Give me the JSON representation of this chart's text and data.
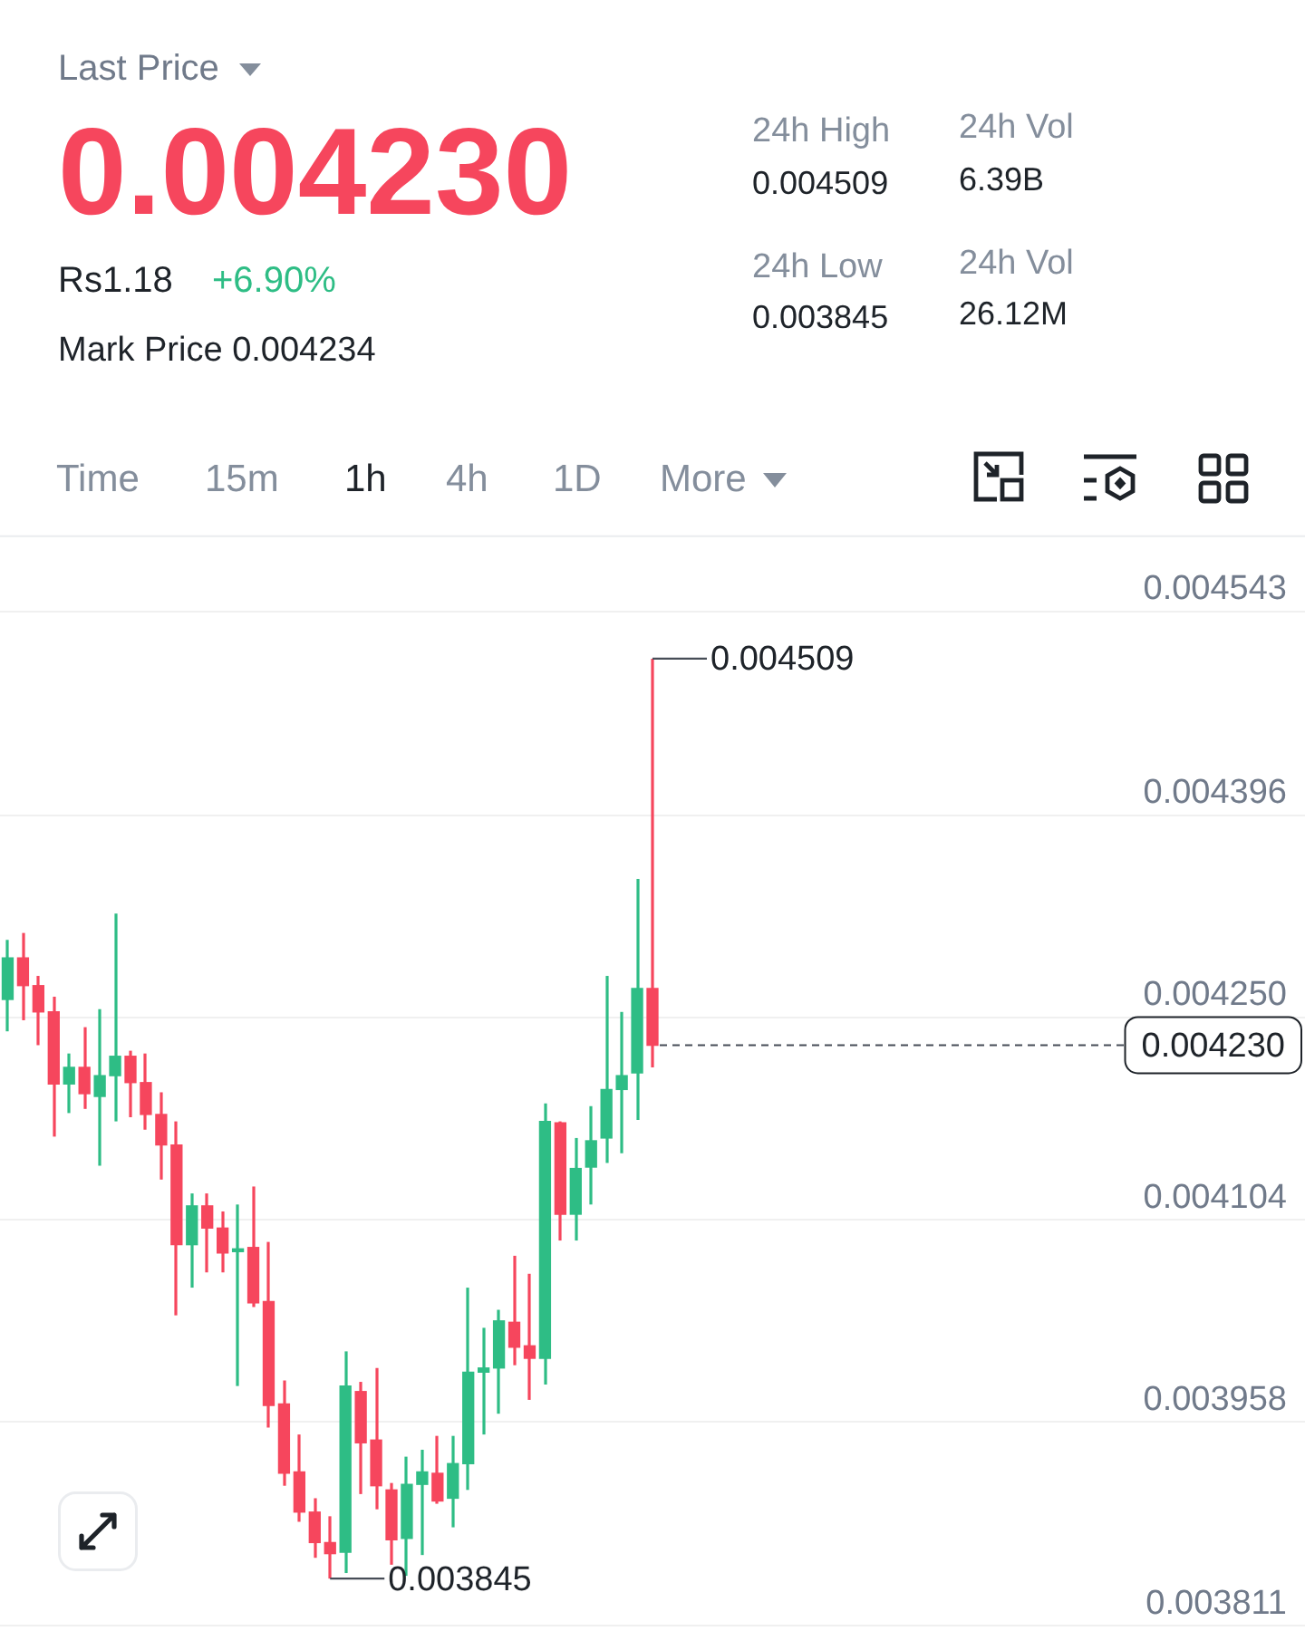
{
  "chart_data": {
    "type": "candlestick",
    "title": "Last Price",
    "annotations": [
      "0.004230",
      "Rs1.18",
      "+6.90%",
      "Mark Price 0.004234",
      "24h High",
      "0.004509",
      "24h Vol",
      "6.39B",
      "24h Low",
      "0.003845",
      "24h Vol",
      "26.12M",
      "Time",
      "15m",
      "1h",
      "4h",
      "1D",
      "More",
      "0.004509",
      "0.003845"
    ],
    "categories": [
      null,
      null,
      null,
      null,
      null,
      null,
      null,
      null,
      null,
      null,
      null,
      null,
      null,
      null,
      null,
      null,
      null,
      null,
      null,
      null,
      null,
      null,
      null,
      null,
      null,
      null,
      null,
      null,
      null,
      null,
      null,
      null,
      null,
      null,
      null,
      null,
      null,
      null,
      null,
      null,
      null,
      null,
      null,
      null,
      null,
      null,
      null,
      null,
      null,
      null,
      null,
      null,
      null,
      null,
      null,
      null,
      null,
      null,
      null,
      null,
      null,
      null,
      null,
      null,
      null,
      null,
      null,
      null,
      null,
      null,
      null,
      null,
      null,
      null,
      null,
      null,
      null,
      null,
      null,
      null,
      null,
      null,
      null,
      null,
      null
    ],
    "ohlc": [
      [
        0.004263,
        0.004306,
        0.00424,
        0.004293
      ],
      [
        0.004293,
        0.004311,
        0.004248,
        0.004273
      ],
      [
        0.004273,
        0.00428,
        0.00423,
        0.004254
      ],
      [
        0.004254,
        0.004265,
        0.004164,
        0.004202
      ],
      [
        0.004202,
        0.004224,
        0.004181,
        0.004214
      ],
      [
        0.004214,
        0.004243,
        0.004184,
        0.004195
      ],
      [
        0.004193,
        0.004256,
        0.004143,
        0.004208
      ],
      [
        0.004208,
        0.004325,
        0.004175,
        0.004222
      ],
      [
        0.004222,
        0.004226,
        0.004178,
        0.004203
      ],
      [
        0.004203,
        0.004224,
        0.004169,
        0.00418
      ],
      [
        0.00418,
        0.004196,
        0.004133,
        0.004158
      ],
      [
        0.004158,
        0.004175,
        0.004035,
        0.004086
      ],
      [
        0.004086,
        0.004123,
        0.004055,
        0.004114
      ],
      [
        0.004114,
        0.004123,
        0.004066,
        0.004098
      ],
      [
        0.004098,
        0.00411,
        0.004066,
        0.00408
      ],
      [
        0.004081,
        0.004115,
        0.003984,
        0.004083
      ],
      [
        0.004084,
        0.004128,
        0.004041,
        0.004044
      ],
      [
        0.004045,
        0.004088,
        0.003954,
        0.00397
      ],
      [
        0.003971,
        0.003988,
        0.003912,
        0.003921
      ],
      [
        0.003922,
        0.003949,
        0.003886,
        0.003893
      ],
      [
        0.003893,
        0.003903,
        0.00386,
        0.003871
      ],
      [
        0.003871,
        0.00389,
        0.003845,
        0.003863
      ],
      [
        0.003864,
        0.004009,
        0.003849,
        0.003984
      ],
      [
        0.00398,
        0.003987,
        0.003906,
        0.003943
      ],
      [
        0.003945,
        0.003997,
        0.003895,
        0.003912
      ],
      [
        0.003909,
        0.003914,
        0.003855,
        0.003873
      ],
      [
        0.003874,
        0.003933,
        0.003847,
        0.003913
      ],
      [
        0.003913,
        0.003938,
        0.003862,
        0.003922
      ],
      [
        0.003921,
        0.003948,
        0.003899,
        0.003901
      ],
      [
        0.003903,
        0.003948,
        0.003882,
        0.003928
      ],
      [
        0.003928,
        0.004055,
        0.003909,
        0.003994
      ],
      [
        0.003994,
        0.004026,
        0.003949,
        0.003997
      ],
      [
        0.003997,
        0.004039,
        0.003964,
        0.004031
      ],
      [
        0.00403,
        0.004078,
        0.003999,
        0.004012
      ],
      [
        0.004013,
        0.004065,
        0.003974,
        0.004004
      ],
      [
        0.004004,
        0.004188,
        0.003985,
        0.004175
      ],
      [
        0.004174,
        0.004175,
        0.004089,
        0.004108
      ],
      [
        0.004108,
        0.004163,
        0.004089,
        0.004141
      ],
      [
        0.004142,
        0.004186,
        0.004115,
        0.004161
      ],
      [
        0.004163,
        0.00428,
        0.004145,
        0.004198
      ],
      [
        0.004198,
        0.004254,
        0.004152,
        0.004208
      ],
      [
        0.00421,
        0.00435,
        0.004176,
        0.004271
      ],
      [
        0.004271,
        0.004509,
        0.004214,
        0.00423
      ],
      null,
      null,
      null,
      null,
      null,
      null,
      null,
      null,
      null,
      null,
      null,
      null,
      null,
      null,
      null,
      null,
      null,
      null,
      null,
      null,
      null,
      null,
      null,
      null,
      null,
      null,
      null,
      null,
      null,
      null,
      null,
      null,
      null,
      null,
      null,
      null,
      null,
      null,
      null,
      null,
      null,
      null
    ],
    "colors": [
      "#2ebd85",
      "#f6465d",
      "#f6465d",
      "#f6465d",
      "#2ebd85",
      "#f6465d",
      "#2ebd85",
      "#2ebd85",
      "#f6465d",
      "#f6465d",
      "#f6465d",
      "#f6465d",
      "#2ebd85",
      "#f6465d",
      "#f6465d",
      "#2ebd85",
      "#f6465d",
      "#f6465d",
      "#f6465d",
      "#f6465d",
      "#f6465d",
      "#f6465d",
      "#2ebd85",
      "#f6465d",
      "#f6465d",
      "#f6465d",
      "#2ebd85",
      "#2ebd85",
      "#f6465d",
      "#2ebd85",
      "#2ebd85",
      "#2ebd85",
      "#2ebd85",
      "#f6465d",
      "#f6465d",
      "#2ebd85",
      "#f6465d",
      "#2ebd85",
      "#2ebd85",
      "#2ebd85",
      "#2ebd85",
      "#2ebd85",
      "#f6465d",
      null,
      null,
      null,
      null,
      null,
      null,
      null,
      null,
      null,
      null,
      null,
      null,
      null,
      null,
      null,
      null,
      null,
      null,
      null,
      null,
      null,
      null,
      null,
      null,
      null,
      null,
      null,
      null,
      null,
      null,
      null,
      null,
      null,
      null,
      null,
      null,
      null,
      null,
      null,
      null,
      null,
      null
    ],
    "ylim": [
      0.003809,
      0.004598
    ],
    "yticks": [
      0.003811,
      0.003958,
      0.004104,
      {
        "value": 0.00425,
        "label": "0.004250"
      },
      0.004396,
      0.004543
    ],
    "ref_lines": [
      {
        "axis": "y",
        "value": 0.00423,
        "label": "0.004230",
        "line_style": "dashed",
        "color": "#474d57"
      }
    ],
    "grid": "y",
    "tick_labels": "y"
  }
}
